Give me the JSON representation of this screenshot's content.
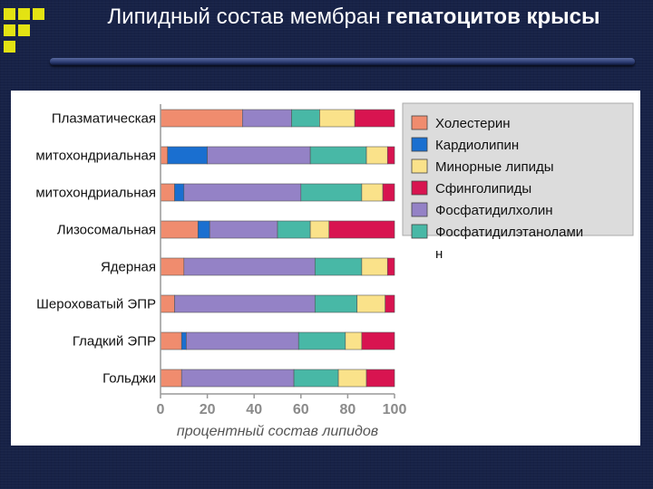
{
  "slide": {
    "title_part1": "Липидный состав мембран ",
    "title_part2": "гепатоцитов крысы"
  },
  "colors": {
    "background": "#172247",
    "accent_squares": "#e3e313",
    "panel": "#ffffff"
  },
  "chart_data": {
    "type": "bar",
    "orientation": "horizontal",
    "stacked": true,
    "xlabel": "процентный состав липидов",
    "xlim": [
      0,
      100
    ],
    "xticks": [
      "0",
      "20",
      "40",
      "60",
      "80",
      "100"
    ],
    "grid": false,
    "legend_position": "right",
    "categories": [
      "Плазматическая",
      "митохондриальная",
      "митохондриальная",
      "Лизосомальная",
      "Ядерная",
      "Шероховатый ЭПР",
      "Гладкий ЭПР",
      "Гольджи"
    ],
    "series": [
      {
        "name": "Холестерин",
        "color": "#f08c6e",
        "values": [
          35,
          3,
          6,
          16,
          10,
          6,
          9,
          9
        ]
      },
      {
        "name": "Кардиолипин",
        "color": "#1a6fd0",
        "values": [
          0,
          17,
          4,
          5,
          0,
          0,
          2,
          0
        ]
      },
      {
        "name": "Фосфатидилхолин",
        "color": "#9482c6",
        "values": [
          21,
          44,
          50,
          29,
          56,
          60,
          48,
          48
        ]
      },
      {
        "name": "Фосфатидилэтаноламин",
        "color": "#48b8a6",
        "values": [
          12,
          24,
          26,
          14,
          20,
          18,
          20,
          19
        ]
      },
      {
        "name": "Минорные липиды",
        "color": "#fae28a",
        "values": [
          15,
          9,
          9,
          8,
          11,
          12,
          7,
          12
        ]
      },
      {
        "name": "Сфинголипиды",
        "color": "#d81450",
        "values": [
          17,
          3,
          5,
          28,
          3,
          4,
          14,
          12
        ]
      }
    ],
    "legend": [
      {
        "label": "Холестерин",
        "color": "#f08c6e"
      },
      {
        "label": "Кардиолипин",
        "color": "#1a6fd0"
      },
      {
        "label": "Минорные липиды",
        "color": "#fae28a"
      },
      {
        "label": "Сфинголипиды",
        "color": "#d81450"
      },
      {
        "label": "Фосфатидилхолин",
        "color": "#9482c6"
      },
      {
        "label": "Фосфатидилэтаноламин",
        "color": "#48b8a6"
      }
    ]
  }
}
